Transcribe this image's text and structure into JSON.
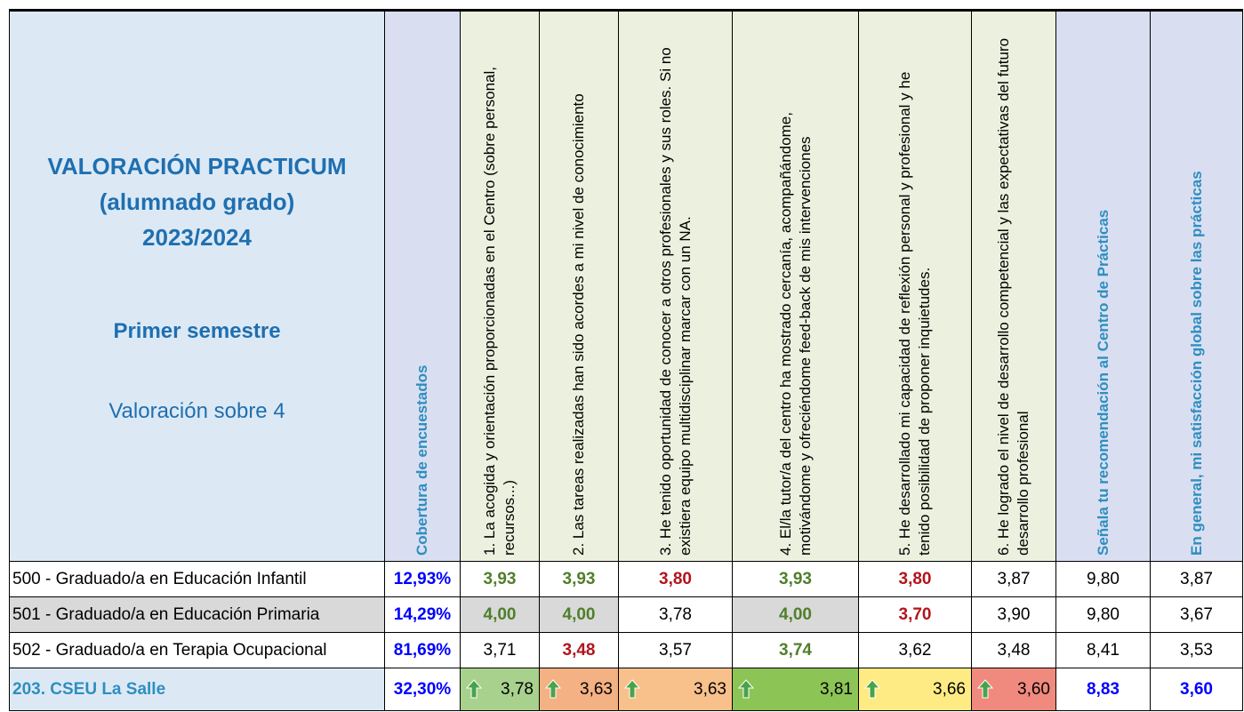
{
  "header": {
    "title_lines": [
      "VALORACIÓN  PRACTICUM",
      "(alumnado grado)",
      "2023/2024"
    ],
    "semester": "Primer semestre",
    "scale": "Valoración sobre 4",
    "columns": [
      {
        "text": "Cobertura de encuestados",
        "bold": true,
        "color": "#2f8ec0",
        "background": "#d9dff1"
      },
      {
        "text": "1. La acogida y orientación proporcionadas en el Centro (sobre personal, recursos...)",
        "bold": false,
        "color": "#000000",
        "background": "#ebf1de"
      },
      {
        "text": "2. Las tareas realizadas han sido acordes a mi nivel de conocimiento",
        "bold": false,
        "color": "#000000",
        "background": "#ebf1de"
      },
      {
        "text": "3. He tenido oportunidad de conocer a otros profesionales y sus roles. Si no existiera equipo multidisciplinar marcar con un NA.",
        "bold": false,
        "color": "#000000",
        "background": "#ebf1de"
      },
      {
        "text": "4. El/la tutor/a del centro ha mostrado cercanía, acompañándome, motivándome y ofreciéndome feed-back de mis intervenciones",
        "bold": false,
        "color": "#000000",
        "background": "#ebf1de"
      },
      {
        "text": "5. He desarrollado mi capacidad de reflexión personal y profesional y he tenido posibilidad de proponer inquietudes.",
        "bold": false,
        "color": "#000000",
        "background": "#ebf1de"
      },
      {
        "text": "6. He logrado el nivel de desarrollo competencial y las expectativas del futuro desarrollo profesional",
        "bold": false,
        "color": "#000000",
        "background": "#ebf1de"
      },
      {
        "text": "Señala tu recomendación al Centro de Prácticas",
        "bold": true,
        "color": "#2f8ec0",
        "background": "#d9dff1"
      },
      {
        "text": "En general, mi satisfacción global sobre las prácticas",
        "bold": true,
        "color": "#2f8ec0",
        "background": "#d9dff1"
      }
    ]
  },
  "rows": [
    {
      "label": "500 - Graduado/a en Educación Infantil",
      "background": "#ffffff",
      "cells": [
        {
          "text": "12,93%",
          "color": "#0000ff",
          "bold": true,
          "background": "#ffffff"
        },
        {
          "text": "3,93",
          "color": "#4f7f2a",
          "bold": true,
          "background": "#ffffff"
        },
        {
          "text": "3,93",
          "color": "#4f7f2a",
          "bold": true,
          "background": "#ffffff"
        },
        {
          "text": "3,80",
          "color": "#b3141c",
          "bold": true,
          "background": "#ffffff"
        },
        {
          "text": "3,93",
          "color": "#4f7f2a",
          "bold": true,
          "background": "#ffffff"
        },
        {
          "text": "3,80",
          "color": "#b3141c",
          "bold": true,
          "background": "#ffffff"
        },
        {
          "text": "3,87",
          "color": "#000000",
          "bold": false,
          "background": "#ffffff"
        },
        {
          "text": "9,80",
          "color": "#000000",
          "bold": false,
          "background": "#ffffff"
        },
        {
          "text": "3,87",
          "color": "#000000",
          "bold": false,
          "background": "#ffffff"
        }
      ]
    },
    {
      "label": "501 - Graduado/a en Educación Primaria",
      "background": "#d9d9d9",
      "cells": [
        {
          "text": "14,29%",
          "color": "#0000ff",
          "bold": true,
          "background": "#ffffff"
        },
        {
          "text": "4,00",
          "color": "#4f7f2a",
          "bold": true,
          "background": "#d9d9d9"
        },
        {
          "text": "4,00",
          "color": "#4f7f2a",
          "bold": true,
          "background": "#d9d9d9"
        },
        {
          "text": "3,78",
          "color": "#000000",
          "bold": false,
          "background": "#ffffff"
        },
        {
          "text": "4,00",
          "color": "#4f7f2a",
          "bold": true,
          "background": "#d9d9d9"
        },
        {
          "text": "3,70",
          "color": "#b3141c",
          "bold": true,
          "background": "#ffffff"
        },
        {
          "text": "3,90",
          "color": "#000000",
          "bold": false,
          "background": "#ffffff"
        },
        {
          "text": "9,80",
          "color": "#000000",
          "bold": false,
          "background": "#ffffff"
        },
        {
          "text": "3,67",
          "color": "#000000",
          "bold": false,
          "background": "#ffffff"
        }
      ]
    },
    {
      "label": "502 - Graduado/a en Terapia Ocupacional",
      "background": "#ffffff",
      "cells": [
        {
          "text": "81,69%",
          "color": "#0000ff",
          "bold": true,
          "background": "#ffffff"
        },
        {
          "text": "3,71",
          "color": "#000000",
          "bold": false,
          "background": "#ffffff"
        },
        {
          "text": "3,48",
          "color": "#b3141c",
          "bold": true,
          "background": "#ffffff"
        },
        {
          "text": "3,57",
          "color": "#000000",
          "bold": false,
          "background": "#ffffff"
        },
        {
          "text": "3,74",
          "color": "#4f7f2a",
          "bold": true,
          "background": "#ffffff"
        },
        {
          "text": "3,62",
          "color": "#000000",
          "bold": false,
          "background": "#ffffff"
        },
        {
          "text": "3,48",
          "color": "#000000",
          "bold": false,
          "background": "#ffffff"
        },
        {
          "text": "8,41",
          "color": "#000000",
          "bold": false,
          "background": "#ffffff"
        },
        {
          "text": "3,53",
          "color": "#000000",
          "bold": false,
          "background": "#ffffff"
        }
      ]
    }
  ],
  "total": {
    "label": "203. CSEU La Salle",
    "cells": [
      {
        "text": "32,30%",
        "color": "#0000ff",
        "bold": true,
        "background": "#ffffff",
        "trend": null
      },
      {
        "text": "3,78",
        "color": "#000000",
        "bold": false,
        "background": "#a9d18e",
        "trend": "up"
      },
      {
        "text": "3,63",
        "color": "#000000",
        "bold": false,
        "background": "#f4b183",
        "trend": "up"
      },
      {
        "text": "3,63",
        "color": "#000000",
        "bold": false,
        "background": "#f8c08a",
        "trend": "up"
      },
      {
        "text": "3,81",
        "color": "#000000",
        "bold": false,
        "background": "#8dc456",
        "trend": "up"
      },
      {
        "text": "3,66",
        "color": "#000000",
        "bold": false,
        "background": "#ffeb84",
        "trend": "up"
      },
      {
        "text": "3,60",
        "color": "#000000",
        "bold": false,
        "background": "#f08a7e",
        "trend": "up"
      },
      {
        "text": "8,83",
        "color": "#0000ff",
        "bold": true,
        "background": "#ffffff",
        "trend": null
      },
      {
        "text": "3,60",
        "color": "#0000ff",
        "bold": true,
        "background": "#ffffff",
        "trend": null
      }
    ]
  }
}
